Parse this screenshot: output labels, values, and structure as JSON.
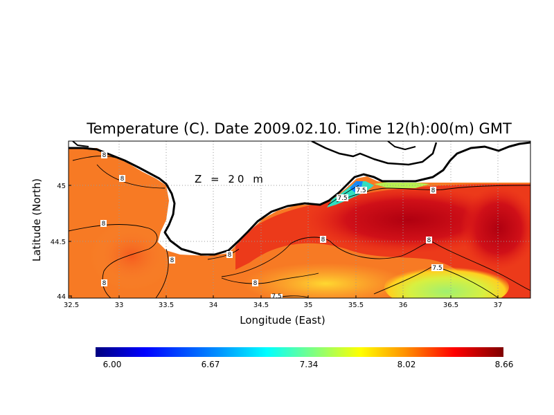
{
  "title": "Temperature (C). Date 2009.02.10. Time 12(h):00(m) GMT",
  "depth_label": "Z = 20 m",
  "xlabel": "Longitude (East)",
  "ylabel": "Latitude (North)",
  "x_ticks": [
    "32.5",
    "33",
    "33.5",
    "34",
    "34.5",
    "35",
    "35.5",
    "36",
    "36.5",
    "37"
  ],
  "y_ticks": [
    "44",
    "44.5",
    "45"
  ],
  "contour_labels": [
    "8",
    "8",
    "8",
    "8",
    "8",
    "8",
    "8",
    "8",
    "8",
    "8",
    "7.5",
    "7.5",
    "7.5",
    "7.5"
  ],
  "colorbar": {
    "ticks": [
      "6.00",
      "6.67",
      "7.34",
      "8.02",
      "8.66"
    ],
    "colors": [
      "#00007f",
      "#0000ff",
      "#0080ff",
      "#00ffff",
      "#80ff80",
      "#ffff00",
      "#ff8000",
      "#ff0000",
      "#7f0000"
    ]
  },
  "map_extent": {
    "lon": [
      32.5,
      37.3
    ],
    "lat": [
      43.98,
      45.36
    ]
  },
  "colors": {
    "land": "#ffffff",
    "coastline": "#000000",
    "grid": "#9a9a9a"
  }
}
